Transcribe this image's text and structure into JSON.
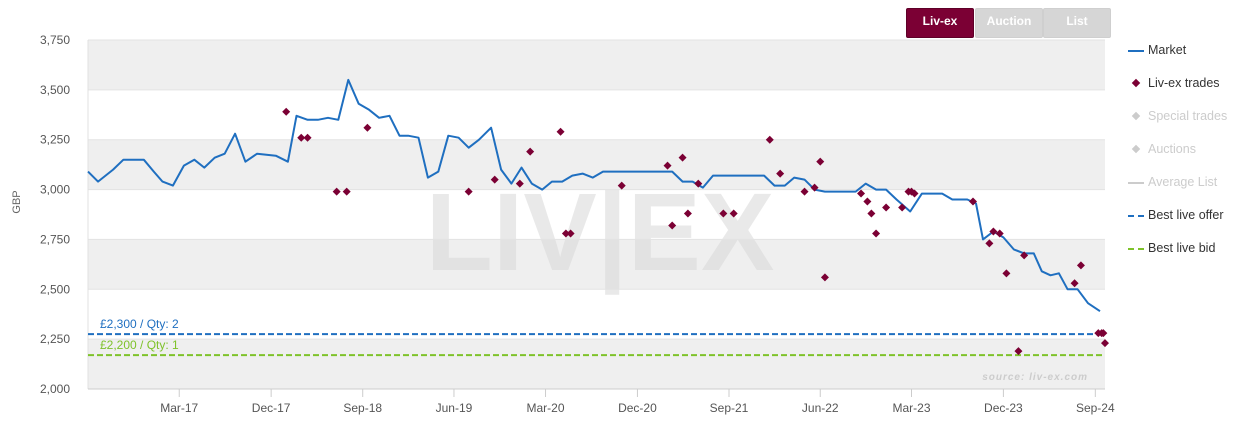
{
  "tabs": [
    {
      "label": "Liv-ex",
      "active": true
    },
    {
      "label": "Auction",
      "active": false
    },
    {
      "label": "List",
      "active": false
    }
  ],
  "legend": [
    {
      "label": "Market",
      "symbol": "line",
      "color": "#1f6fc0",
      "visible": true
    },
    {
      "label": "Liv-ex trades",
      "symbol": "diamond",
      "color": "#7b0034",
      "visible": true
    },
    {
      "label": "Special trades",
      "symbol": "diamond",
      "color": "#cccccc",
      "visible": false
    },
    {
      "label": "Auctions",
      "symbol": "diamond",
      "color": "#cccccc",
      "visible": false
    },
    {
      "label": "Average List",
      "symbol": "line",
      "color": "#cccccc",
      "visible": false
    },
    {
      "label": "Best live offer",
      "symbol": "dash",
      "color": "#1f6fc0",
      "visible": true
    },
    {
      "label": "Best live bid",
      "symbol": "dash",
      "color": "#7ec22a",
      "visible": true
    }
  ],
  "watermark": "LIV|EX",
  "source": "source: liv-ex.com",
  "chart_data": {
    "type": "line",
    "ylabel": "GBP",
    "ylim": [
      2000,
      3750
    ],
    "xlim": [
      "2016-06-01",
      "2024-09-30"
    ],
    "yticks": [
      2000,
      2250,
      2500,
      2750,
      3000,
      3250,
      3500,
      3750
    ],
    "ytick_labels": [
      "2,000",
      "2,250",
      "2,500",
      "2,750",
      "3,000",
      "3,250",
      "3,500",
      "3,750"
    ],
    "xticks": [
      {
        "date": "2017-03-01",
        "label": "Mar-17"
      },
      {
        "date": "2017-12-01",
        "label": "Dec-17"
      },
      {
        "date": "2018-09-01",
        "label": "Sep-18"
      },
      {
        "date": "2019-06-01",
        "label": "Jun-19"
      },
      {
        "date": "2020-03-01",
        "label": "Mar-20"
      },
      {
        "date": "2020-12-01",
        "label": "Dec-20"
      },
      {
        "date": "2021-09-01",
        "label": "Sep-21"
      },
      {
        "date": "2022-06-01",
        "label": "Jun-22"
      },
      {
        "date": "2023-03-01",
        "label": "Mar-23"
      },
      {
        "date": "2023-12-01",
        "label": "Dec-23"
      },
      {
        "date": "2024-09-01",
        "label": "Sep-24"
      }
    ],
    "series": [
      {
        "name": "Market",
        "kind": "line",
        "color": "#1f6fc0",
        "points": [
          [
            "2016-06-01",
            3090
          ],
          [
            "2016-07-01",
            3040
          ],
          [
            "2016-08-15",
            3100
          ],
          [
            "2016-09-15",
            3150
          ],
          [
            "2016-11-15",
            3150
          ],
          [
            "2016-12-15",
            3090
          ],
          [
            "2017-01-10",
            3040
          ],
          [
            "2017-02-10",
            3020
          ],
          [
            "2017-03-15",
            3120
          ],
          [
            "2017-04-15",
            3150
          ],
          [
            "2017-05-15",
            3110
          ],
          [
            "2017-06-15",
            3160
          ],
          [
            "2017-07-15",
            3180
          ],
          [
            "2017-08-15",
            3280
          ],
          [
            "2017-09-15",
            3140
          ],
          [
            "2017-10-20",
            3180
          ],
          [
            "2017-12-15",
            3170
          ],
          [
            "2018-01-20",
            3140
          ],
          [
            "2018-02-15",
            3370
          ],
          [
            "2018-03-20",
            3350
          ],
          [
            "2018-04-20",
            3350
          ],
          [
            "2018-05-20",
            3360
          ],
          [
            "2018-06-20",
            3350
          ],
          [
            "2018-07-20",
            3550
          ],
          [
            "2018-08-20",
            3430
          ],
          [
            "2018-09-20",
            3400
          ],
          [
            "2018-10-20",
            3360
          ],
          [
            "2018-11-20",
            3370
          ],
          [
            "2018-12-20",
            3270
          ],
          [
            "2019-01-15",
            3270
          ],
          [
            "2019-02-15",
            3260
          ],
          [
            "2019-03-15",
            3060
          ],
          [
            "2019-04-15",
            3090
          ],
          [
            "2019-05-15",
            3270
          ],
          [
            "2019-06-15",
            3260
          ],
          [
            "2019-07-15",
            3210
          ],
          [
            "2019-08-15",
            3250
          ],
          [
            "2019-09-20",
            3310
          ],
          [
            "2019-10-20",
            3100
          ],
          [
            "2019-11-20",
            3030
          ],
          [
            "2019-12-20",
            3110
          ],
          [
            "2020-01-20",
            3030
          ],
          [
            "2020-02-20",
            3000
          ],
          [
            "2020-03-20",
            3040
          ],
          [
            "2020-04-20",
            3040
          ],
          [
            "2020-05-20",
            3070
          ],
          [
            "2020-06-20",
            3080
          ],
          [
            "2020-07-20",
            3060
          ],
          [
            "2020-08-20",
            3090
          ],
          [
            "2020-12-20",
            3090
          ],
          [
            "2021-03-15",
            3090
          ],
          [
            "2021-04-15",
            3040
          ],
          [
            "2021-05-15",
            3040
          ],
          [
            "2021-06-15",
            3010
          ],
          [
            "2021-07-15",
            3070
          ],
          [
            "2021-12-15",
            3070
          ],
          [
            "2022-01-15",
            3020
          ],
          [
            "2022-02-15",
            3020
          ],
          [
            "2022-03-15",
            3060
          ],
          [
            "2022-04-15",
            3050
          ],
          [
            "2022-05-15",
            3000
          ],
          [
            "2022-06-15",
            2990
          ],
          [
            "2022-09-15",
            2990
          ],
          [
            "2022-10-15",
            3030
          ],
          [
            "2022-11-15",
            3000
          ],
          [
            "2022-12-15",
            3000
          ],
          [
            "2023-01-15",
            2950
          ],
          [
            "2023-02-25",
            2890
          ],
          [
            "2023-04-01",
            2980
          ],
          [
            "2023-06-01",
            2980
          ],
          [
            "2023-07-01",
            2950
          ],
          [
            "2023-08-15",
            2950
          ],
          [
            "2023-09-10",
            2930
          ],
          [
            "2023-10-01",
            2750
          ],
          [
            "2023-11-01",
            2790
          ],
          [
            "2023-12-01",
            2760
          ],
          [
            "2024-01-01",
            2700
          ],
          [
            "2024-02-01",
            2680
          ],
          [
            "2024-03-01",
            2680
          ],
          [
            "2024-03-25",
            2590
          ],
          [
            "2024-04-20",
            2570
          ],
          [
            "2024-05-15",
            2580
          ],
          [
            "2024-06-10",
            2500
          ],
          [
            "2024-07-10",
            2500
          ],
          [
            "2024-08-10",
            2430
          ],
          [
            "2024-09-15",
            2390
          ]
        ]
      },
      {
        "name": "Liv-ex trades",
        "kind": "scatter",
        "color": "#7b0034",
        "points": [
          [
            "2018-01-15",
            3390
          ],
          [
            "2018-03-01",
            3260
          ],
          [
            "2018-03-20",
            3260
          ],
          [
            "2018-06-15",
            2990
          ],
          [
            "2018-07-15",
            2990
          ],
          [
            "2018-09-15",
            3310
          ],
          [
            "2019-07-15",
            2990
          ],
          [
            "2019-10-01",
            3050
          ],
          [
            "2019-12-15",
            3030
          ],
          [
            "2020-01-15",
            3190
          ],
          [
            "2020-04-15",
            3290
          ],
          [
            "2020-05-01",
            2780
          ],
          [
            "2020-05-15",
            2780
          ],
          [
            "2020-10-15",
            3020
          ],
          [
            "2021-03-01",
            3120
          ],
          [
            "2021-03-15",
            2820
          ],
          [
            "2021-04-15",
            3160
          ],
          [
            "2021-05-01",
            2880
          ],
          [
            "2021-06-01",
            3030
          ],
          [
            "2021-08-15",
            2880
          ],
          [
            "2021-09-15",
            2880
          ],
          [
            "2022-01-01",
            3250
          ],
          [
            "2022-02-01",
            3080
          ],
          [
            "2022-04-15",
            2990
          ],
          [
            "2022-05-15",
            3010
          ],
          [
            "2022-06-01",
            3140
          ],
          [
            "2022-06-15",
            2560
          ],
          [
            "2022-10-01",
            2980
          ],
          [
            "2022-10-20",
            2940
          ],
          [
            "2022-11-01",
            2880
          ],
          [
            "2022-11-15",
            2780
          ],
          [
            "2022-12-15",
            2910
          ],
          [
            "2023-02-01",
            2910
          ],
          [
            "2023-02-20",
            2990
          ],
          [
            "2023-03-01",
            2990
          ],
          [
            "2023-03-10",
            2980
          ],
          [
            "2023-09-01",
            2940
          ],
          [
            "2023-10-20",
            2730
          ],
          [
            "2023-11-01",
            2790
          ],
          [
            "2023-11-20",
            2780
          ],
          [
            "2023-12-10",
            2580
          ],
          [
            "2024-01-15",
            2190
          ],
          [
            "2024-02-01",
            2670
          ],
          [
            "2024-07-01",
            2530
          ],
          [
            "2024-07-20",
            2620
          ],
          [
            "2024-09-10",
            2280
          ],
          [
            "2024-09-20",
            2280
          ],
          [
            "2024-09-25",
            2280
          ],
          [
            "2024-09-30",
            2230
          ]
        ]
      },
      {
        "name": "Best live offer",
        "kind": "hline",
        "color": "#1f6fc0",
        "value": 2275,
        "label": "£2,300 / Qty: 2"
      },
      {
        "name": "Best live bid",
        "kind": "hline",
        "color": "#7ec22a",
        "value": 2170,
        "label": "£2,200 / Qty: 1"
      }
    ]
  }
}
